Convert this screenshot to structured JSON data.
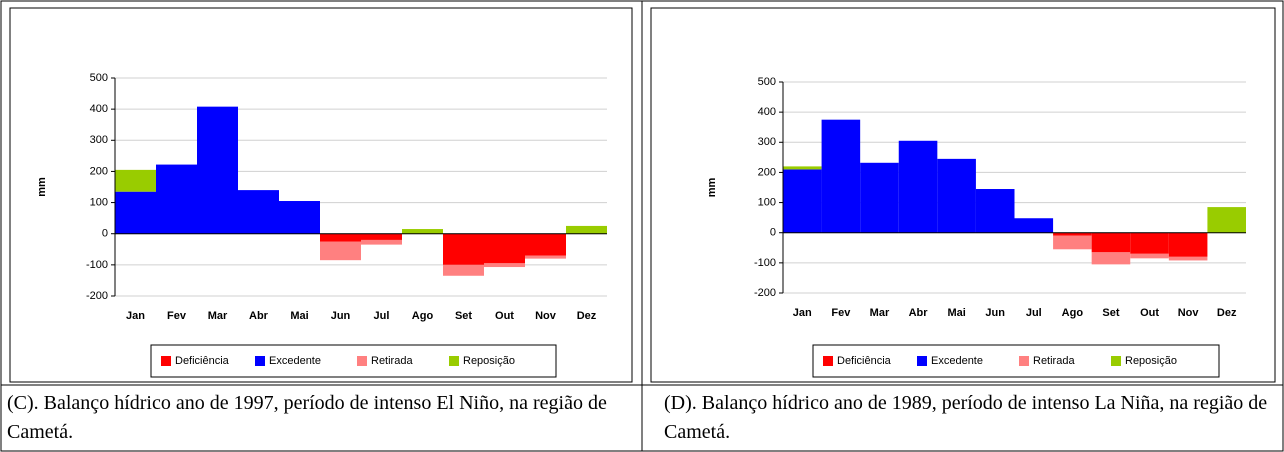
{
  "chart_data": [
    {
      "type": "bar",
      "stacked": true,
      "y_label": "mm",
      "categories": [
        "Jan",
        "Fev",
        "Mar",
        "Abr",
        "Mai",
        "Jun",
        "Jul",
        "Ago",
        "Set",
        "Out",
        "Nov",
        "Dez"
      ],
      "series": [
        {
          "name": "Deficiência",
          "color": "#ff0000",
          "values": [
            0,
            0,
            0,
            0,
            0,
            -25,
            -20,
            0,
            -100,
            -95,
            -70,
            0
          ]
        },
        {
          "name": "Excedente",
          "color": "#0000ff",
          "values": [
            135,
            222,
            408,
            140,
            105,
            0,
            0,
            0,
            0,
            0,
            0,
            0
          ]
        },
        {
          "name": "Retirada",
          "color": "#ff8080",
          "values": [
            0,
            0,
            0,
            0,
            0,
            -60,
            -15,
            0,
            -35,
            -12,
            -10,
            0
          ]
        },
        {
          "name": "Reposição",
          "color": "#99cc00",
          "values": [
            70,
            0,
            0,
            0,
            0,
            0,
            0,
            15,
            0,
            0,
            0,
            25
          ]
        }
      ],
      "ylim": [
        -200,
        500
      ],
      "yticks": [
        -200,
        -100,
        0,
        100,
        200,
        300,
        400,
        500
      ],
      "grid": true,
      "legend": "bottom",
      "caption": "(C). Balanço hídrico ano de 1997, período de intenso El Niño, na região de Cametá."
    },
    {
      "type": "bar",
      "stacked": true,
      "y_label": "mm",
      "categories": [
        "Jan",
        "Fev",
        "Mar",
        "Abr",
        "Mai",
        "Jun",
        "Jul",
        "Ago",
        "Set",
        "Out",
        "Nov",
        "Dez"
      ],
      "series": [
        {
          "name": "Deficiência",
          "color": "#ff0000",
          "values": [
            0,
            0,
            0,
            0,
            0,
            0,
            0,
            -10,
            -65,
            -70,
            -80,
            0
          ]
        },
        {
          "name": "Excedente",
          "color": "#0000ff",
          "values": [
            210,
            375,
            232,
            305,
            245,
            145,
            48,
            0,
            0,
            0,
            0,
            0
          ]
        },
        {
          "name": "Retirada",
          "color": "#ff8080",
          "values": [
            0,
            0,
            0,
            0,
            0,
            0,
            0,
            -45,
            -40,
            -15,
            -12,
            0
          ]
        },
        {
          "name": "Reposição",
          "color": "#99cc00",
          "values": [
            10,
            0,
            0,
            0,
            0,
            0,
            0,
            0,
            0,
            0,
            0,
            85
          ]
        }
      ],
      "ylim": [
        -200,
        500
      ],
      "yticks": [
        -200,
        -100,
        0,
        100,
        200,
        300,
        400,
        500
      ],
      "grid": true,
      "legend": "bottom",
      "caption": "(D). Balanço hídrico ano de 1989, período de intenso La Niña, na região de Cametá."
    }
  ]
}
